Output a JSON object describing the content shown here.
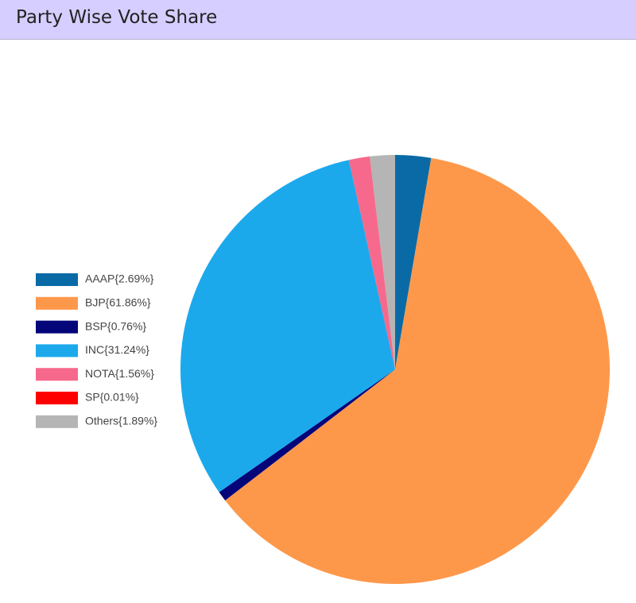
{
  "chart_data": {
    "type": "pie",
    "title": "Party Wise Vote Share",
    "categories": [
      "AAAP{2.69%}",
      "BJP{61.86%}",
      "BSP{0.76%}",
      "INC{31.24%}",
      "NOTA{1.56%}",
      "SP{0.01%}",
      "Others{1.89%}"
    ],
    "values": [
      2.69,
      61.86,
      0.76,
      31.24,
      1.56,
      0.01,
      1.89
    ],
    "colors": [
      "#0a6aa6",
      "#fd984b",
      "#05057a",
      "#1ba9ec",
      "#f7698c",
      "#ff0000",
      "#b5b5b5"
    ],
    "legend": "left"
  }
}
